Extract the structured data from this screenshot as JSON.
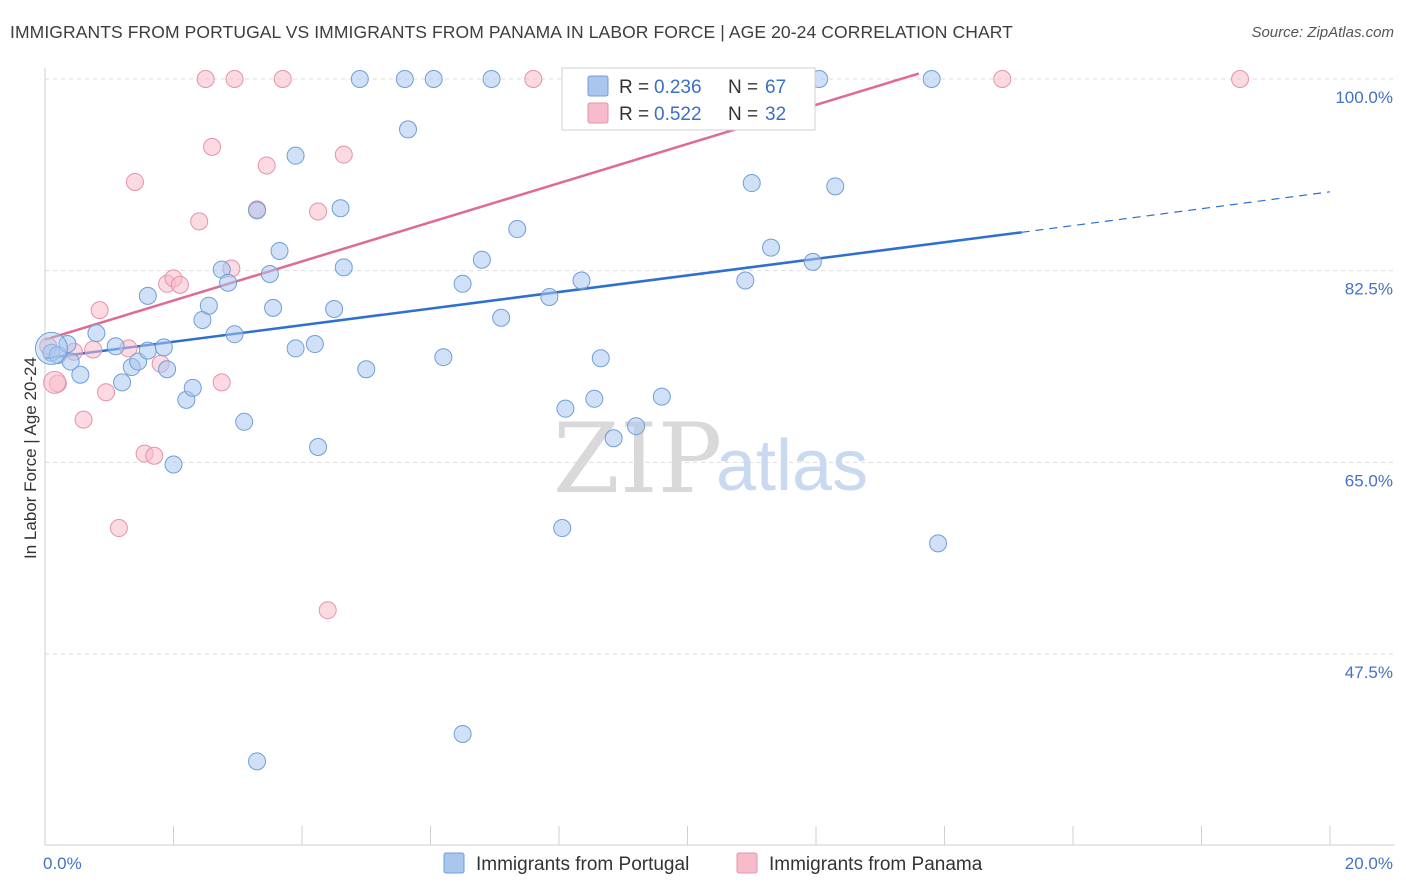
{
  "title": "IMMIGRANTS FROM PORTUGAL VS IMMIGRANTS FROM PANAMA IN LABOR FORCE | AGE 20-24 CORRELATION CHART",
  "source": "Source: ZipAtlas.com",
  "watermark": {
    "zip": "ZIP",
    "atlas": "atlas"
  },
  "colors": {
    "portugal_fill": "#a9c7ee",
    "portugal_stroke": "#6f9fd8",
    "portugal_line": "#2f6fcf",
    "panama_fill": "#f7bccb",
    "panama_stroke": "#e892a9",
    "panama_line": "#e06b92",
    "grid": "#dddddd",
    "tick_label": "#4472c4"
  },
  "legend": {
    "rows": [
      {
        "r_label": "R = ",
        "r_value": "0.236",
        "n_label": "N = ",
        "n_value": "67"
      },
      {
        "r_label": "R = ",
        "r_value": "0.522",
        "n_label": "N = ",
        "n_value": "32"
      }
    ]
  },
  "chart_data": {
    "type": "scatter",
    "title": "IMMIGRANTS FROM PORTUGAL VS IMMIGRANTS FROM PANAMA IN LABOR FORCE | AGE 20-24 CORRELATION CHART",
    "xlabel": "",
    "ylabel": "In Labor Force | Age 20-24",
    "xlim": [
      0,
      20
    ],
    "ylim": [
      32,
      102
    ],
    "x_tick_labels": [
      "0.0%",
      "20.0%"
    ],
    "y_ticks": [
      47.5,
      65.0,
      82.5,
      100.0
    ],
    "y_tick_labels": [
      "47.5%",
      "65.0%",
      "82.5%",
      "100.0%"
    ],
    "grid": "horizontal dashed",
    "legend_position": "top-center",
    "series": [
      {
        "name": "Immigrants from Portugal",
        "color": "#a9c7ee",
        "r": 0.236,
        "n": 67,
        "trend": {
          "x": [
            0.0,
            15.2
          ],
          "y": [
            74.5,
            86.0
          ],
          "dashed_to": [
            20.0,
            89.7
          ]
        },
        "points": [
          [
            0.1,
            75.0
          ],
          [
            0.2,
            74.8
          ],
          [
            0.35,
            75.8
          ],
          [
            0.4,
            74.2
          ],
          [
            0.55,
            73.0
          ],
          [
            0.8,
            76.8
          ],
          [
            1.1,
            75.6
          ],
          [
            1.2,
            72.3
          ],
          [
            1.35,
            73.7
          ],
          [
            1.45,
            74.2
          ],
          [
            1.6,
            75.2
          ],
          [
            1.85,
            75.5
          ],
          [
            1.9,
            73.5
          ],
          [
            1.6,
            80.2
          ],
          [
            2.0,
            64.8
          ],
          [
            2.2,
            70.7
          ],
          [
            2.3,
            71.8
          ],
          [
            2.45,
            78.0
          ],
          [
            2.55,
            79.3
          ],
          [
            2.75,
            82.6
          ],
          [
            2.85,
            81.4
          ],
          [
            2.95,
            76.7
          ],
          [
            3.1,
            68.7
          ],
          [
            3.3,
            88.0
          ],
          [
            3.5,
            82.2
          ],
          [
            3.55,
            79.1
          ],
          [
            3.65,
            84.3
          ],
          [
            3.9,
            75.4
          ],
          [
            3.9,
            93.0
          ],
          [
            4.2,
            75.8
          ],
          [
            4.25,
            66.4
          ],
          [
            4.5,
            79.0
          ],
          [
            4.6,
            88.2
          ],
          [
            4.65,
            82.8
          ],
          [
            5.0,
            73.5
          ],
          [
            5.65,
            95.4
          ],
          [
            6.2,
            74.6
          ],
          [
            6.5,
            81.3
          ],
          [
            6.8,
            83.5
          ],
          [
            7.1,
            78.2
          ],
          [
            7.35,
            86.3
          ],
          [
            7.85,
            80.1
          ],
          [
            8.05,
            59.0
          ],
          [
            8.1,
            69.9
          ],
          [
            8.35,
            81.6
          ],
          [
            8.55,
            70.8
          ],
          [
            8.65,
            74.5
          ],
          [
            8.85,
            67.2
          ],
          [
            9.2,
            68.3
          ],
          [
            9.6,
            71.0
          ],
          [
            10.9,
            81.6
          ],
          [
            11.0,
            90.5
          ],
          [
            11.3,
            84.6
          ],
          [
            11.95,
            83.3
          ],
          [
            12.3,
            90.2
          ],
          [
            13.9,
            57.6
          ],
          [
            3.3,
            37.7
          ],
          [
            6.5,
            40.2
          ],
          [
            4.9,
            100.0
          ],
          [
            5.6,
            100.0
          ],
          [
            6.05,
            100.0
          ],
          [
            6.95,
            100.0
          ],
          [
            12.05,
            100.0
          ],
          [
            13.8,
            100.0
          ]
        ]
      },
      {
        "name": "Immigrants from Panama",
        "color": "#f7bccb",
        "r": 0.522,
        "n": 32,
        "trend": {
          "x": [
            0.0,
            13.6
          ],
          "y": [
            76.2,
            100.5
          ]
        },
        "points": [
          [
            0.05,
            75.6
          ],
          [
            0.2,
            72.2
          ],
          [
            0.45,
            75.1
          ],
          [
            0.6,
            68.9
          ],
          [
            0.75,
            75.3
          ],
          [
            0.85,
            78.9
          ],
          [
            0.95,
            71.4
          ],
          [
            1.15,
            59.0
          ],
          [
            1.3,
            75.4
          ],
          [
            1.4,
            90.6
          ],
          [
            1.55,
            65.8
          ],
          [
            1.7,
            65.6
          ],
          [
            1.8,
            74.0
          ],
          [
            1.9,
            81.3
          ],
          [
            2.0,
            81.8
          ],
          [
            2.1,
            81.2
          ],
          [
            2.4,
            87.0
          ],
          [
            2.6,
            93.8
          ],
          [
            2.75,
            72.3
          ],
          [
            2.9,
            82.7
          ],
          [
            3.3,
            88.1
          ],
          [
            3.45,
            92.1
          ],
          [
            4.25,
            87.9
          ],
          [
            4.4,
            51.5
          ],
          [
            4.65,
            93.1
          ],
          [
            2.5,
            100.0
          ],
          [
            2.95,
            100.0
          ],
          [
            3.7,
            100.0
          ],
          [
            7.6,
            100.0
          ],
          [
            14.9,
            100.0
          ],
          [
            18.6,
            100.0
          ]
        ]
      }
    ]
  },
  "bottom_legend": [
    "Immigrants from Portugal",
    "Immigrants from Panama"
  ]
}
